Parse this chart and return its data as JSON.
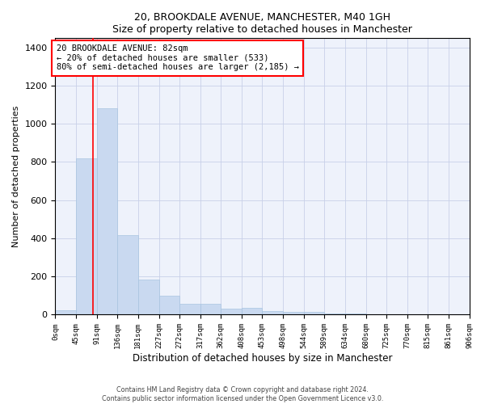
{
  "title1": "20, BROOKDALE AVENUE, MANCHESTER, M40 1GH",
  "title2": "Size of property relative to detached houses in Manchester",
  "xlabel": "Distribution of detached houses by size in Manchester",
  "ylabel": "Number of detached properties",
  "bar_color": "#c9d9f0",
  "bar_edge_color": "#a8c4e0",
  "bg_color": "#eef2fb",
  "grid_color": "#c8d0e8",
  "red_line_x": 82,
  "bin_edges": [
    0,
    45,
    91,
    136,
    181,
    227,
    272,
    317,
    362,
    408,
    453,
    498,
    544,
    589,
    634,
    680,
    725,
    770,
    815,
    861,
    906
  ],
  "bin_counts": [
    25,
    820,
    1080,
    415,
    185,
    100,
    57,
    55,
    33,
    35,
    20,
    13,
    13,
    5,
    5,
    3,
    2,
    1,
    1,
    1
  ],
  "ylim": [
    0,
    1450
  ],
  "annotation_line1": "20 BROOKDALE AVENUE: 82sqm",
  "annotation_line2": "← 20% of detached houses are smaller (533)",
  "annotation_line3": "80% of semi-detached houses are larger (2,185) →",
  "annotation_box_color": "white",
  "annotation_box_edge": "red",
  "footer1": "Contains HM Land Registry data © Crown copyright and database right 2024.",
  "footer2": "Contains public sector information licensed under the Open Government Licence v3.0."
}
